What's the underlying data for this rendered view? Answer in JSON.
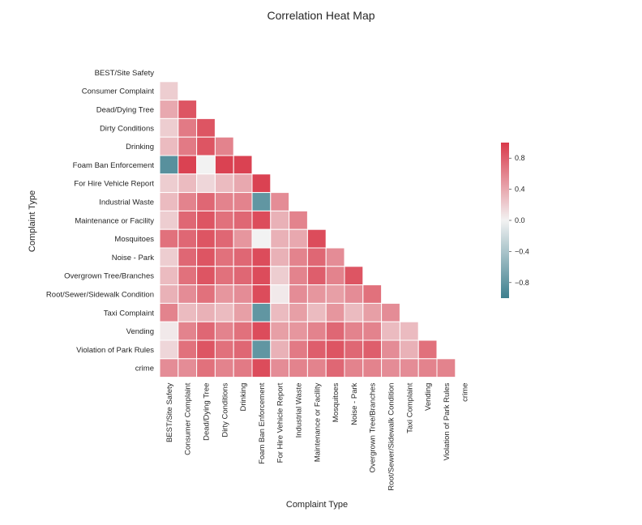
{
  "chart_data": {
    "type": "heatmap",
    "title": "Correlation Heat Map",
    "xlabel": "Complaint Type",
    "ylabel": "Complaint Type",
    "mask": "upper-triangle-and-diagonal",
    "categories": [
      "BEST/Site Safety",
      "Consumer Complaint",
      "Dead/Dying Tree",
      "Dirty Conditions",
      "Drinking",
      "Foam Ban Enforcement",
      "For Hire Vehicle Report",
      "Industrial Waste",
      "Maintenance or Facility",
      "Mosquitoes",
      "Noise - Park",
      "Overgrown Tree/Branches",
      "Root/Sewer/Sidewalk Condition",
      "Taxi Complaint",
      "Vending",
      "Violation of Park Rules",
      "crime"
    ],
    "values": [
      [
        null,
        null,
        null,
        null,
        null,
        null,
        null,
        null,
        null,
        null,
        null,
        null,
        null,
        null,
        null,
        null,
        null
      ],
      [
        0.2,
        null,
        null,
        null,
        null,
        null,
        null,
        null,
        null,
        null,
        null,
        null,
        null,
        null,
        null,
        null,
        null
      ],
      [
        0.4,
        0.85,
        null,
        null,
        null,
        null,
        null,
        null,
        null,
        null,
        null,
        null,
        null,
        null,
        null,
        null,
        null
      ],
      [
        0.2,
        0.65,
        0.85,
        null,
        null,
        null,
        null,
        null,
        null,
        null,
        null,
        null,
        null,
        null,
        null,
        null,
        null
      ],
      [
        0.3,
        0.65,
        0.85,
        0.6,
        null,
        null,
        null,
        null,
        null,
        null,
        null,
        null,
        null,
        null,
        null,
        null,
        null
      ],
      [
        -0.85,
        0.95,
        0.0,
        0.95,
        0.95,
        null,
        null,
        null,
        null,
        null,
        null,
        null,
        null,
        null,
        null,
        null,
        null
      ],
      [
        0.2,
        0.3,
        0.15,
        0.3,
        0.4,
        0.95,
        null,
        null,
        null,
        null,
        null,
        null,
        null,
        null,
        null,
        null,
        null
      ],
      [
        0.3,
        0.6,
        0.75,
        0.6,
        0.6,
        -0.8,
        0.55,
        null,
        null,
        null,
        null,
        null,
        null,
        null,
        null,
        null,
        null
      ],
      [
        0.2,
        0.75,
        0.85,
        0.7,
        0.75,
        0.9,
        0.35,
        0.6,
        null,
        null,
        null,
        null,
        null,
        null,
        null,
        null,
        null
      ],
      [
        0.7,
        0.75,
        0.85,
        0.75,
        0.5,
        0.0,
        0.35,
        0.4,
        0.9,
        null,
        null,
        null,
        null,
        null,
        null,
        null,
        null
      ],
      [
        0.2,
        0.75,
        0.85,
        0.7,
        0.75,
        0.9,
        0.35,
        0.6,
        0.75,
        0.55,
        null,
        null,
        null,
        null,
        null,
        null,
        null
      ],
      [
        0.3,
        0.7,
        0.85,
        0.7,
        0.75,
        0.9,
        0.2,
        0.6,
        0.8,
        0.6,
        0.85,
        null,
        null,
        null,
        null,
        null,
        null
      ],
      [
        0.35,
        0.55,
        0.7,
        0.5,
        0.55,
        0.9,
        0.05,
        0.55,
        0.5,
        0.45,
        0.55,
        0.7,
        null,
        null,
        null,
        null,
        null
      ],
      [
        0.6,
        0.3,
        0.35,
        0.3,
        0.45,
        -0.8,
        0.3,
        0.45,
        0.3,
        0.5,
        0.3,
        0.45,
        0.55,
        null,
        null,
        null,
        null
      ],
      [
        0.05,
        0.6,
        0.75,
        0.6,
        0.7,
        0.9,
        0.45,
        0.5,
        0.6,
        0.75,
        0.6,
        0.6,
        0.3,
        0.3,
        null,
        null,
        null
      ],
      [
        0.15,
        0.7,
        0.85,
        0.7,
        0.75,
        -0.8,
        0.35,
        0.65,
        0.8,
        0.85,
        0.75,
        0.8,
        0.55,
        0.35,
        0.7,
        null,
        null
      ],
      [
        0.55,
        0.55,
        0.7,
        0.6,
        0.65,
        0.9,
        0.55,
        0.6,
        0.6,
        0.75,
        0.6,
        0.6,
        0.55,
        0.55,
        0.6,
        0.6,
        null
      ]
    ],
    "vmin": -1.0,
    "vmax": 1.0,
    "colorbar_ticks": [
      0.8,
      0.4,
      0.0,
      -0.4,
      -0.8
    ],
    "colorbar_tick_labels": [
      "0.8",
      "0.4",
      "0.0",
      "−0.4",
      "−0.8"
    ],
    "colormap": {
      "low": "#3d7f8e",
      "mid": "#f2f2f2",
      "high": "#d9394a"
    },
    "cell_border_color": "#ffffff"
  }
}
